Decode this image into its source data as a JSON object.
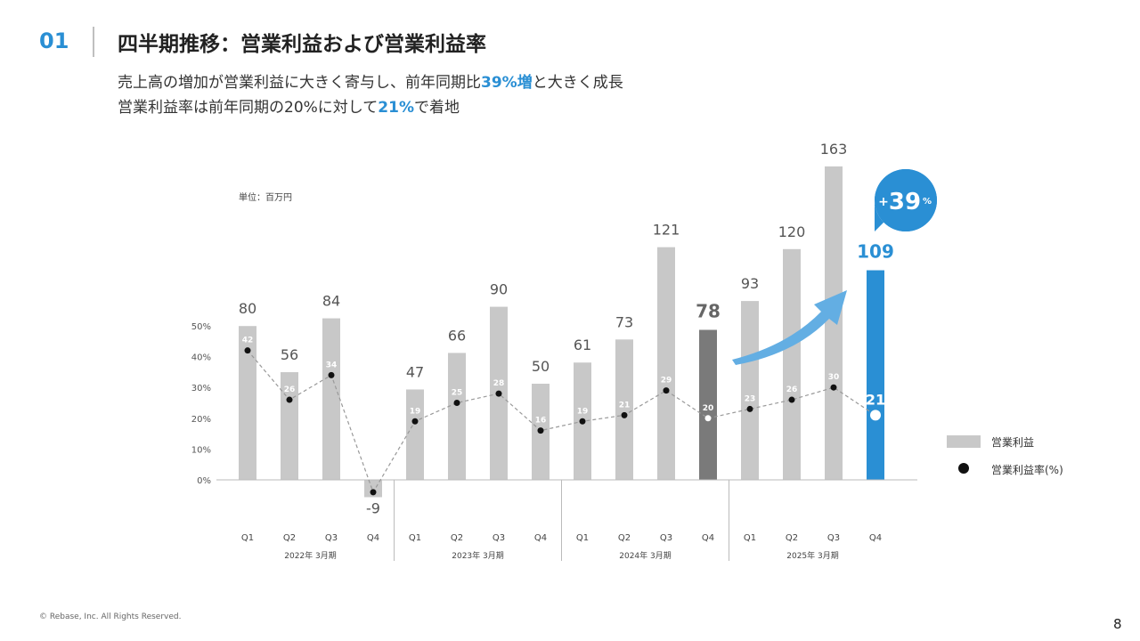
{
  "header": {
    "section_number": "01",
    "title": "四半期推移：営業利益および営業利益率",
    "subtitle1_pre": "売上高の増加が営業利益に大きく寄与し、前年同期比",
    "subtitle1_hl": "39%増",
    "subtitle1_post": "と大きく成長",
    "subtitle2_pre": "営業利益率は前年同期の20%に対して",
    "subtitle2_hl": "21%",
    "subtitle2_post": "で着地"
  },
  "unit_label": "単位：百万円",
  "legend": {
    "bar": "営業利益",
    "dot": "営業利益率(%)"
  },
  "growth_badge": {
    "sign": "+",
    "value": "39",
    "unit": "%"
  },
  "footer": {
    "copyright": "© Rebase, Inc. All Rights Reserved.",
    "page": "8"
  },
  "colors": {
    "bar": "#c8c8c8",
    "highlight_prev": "#7a7a7a",
    "highlight_curr": "#2a8fd4",
    "line": "#999999",
    "dot": "#111111"
  },
  "chart_data": {
    "type": "bar",
    "categories": [
      "Q1",
      "Q2",
      "Q3",
      "Q4",
      "Q1",
      "Q2",
      "Q3",
      "Q4",
      "Q1",
      "Q2",
      "Q3",
      "Q4",
      "Q1",
      "Q2",
      "Q3",
      "Q4"
    ],
    "groups": [
      "2022年 3月期",
      "2023年 3月期",
      "2024年 3月期",
      "2025年 3月期"
    ],
    "series": [
      {
        "name": "営業利益",
        "type": "bar",
        "values": [
          80,
          56,
          84,
          -9,
          47,
          66,
          90,
          50,
          61,
          73,
          121,
          78,
          93,
          120,
          163,
          109
        ]
      },
      {
        "name": "営業利益率(%)",
        "type": "line",
        "values": [
          42,
          26,
          34,
          -4,
          19,
          25,
          28,
          16,
          19,
          21,
          29,
          20,
          23,
          26,
          30,
          21
        ]
      }
    ],
    "secondary_axis": {
      "ticks": [
        "0%",
        "10%",
        "20%",
        "30%",
        "40%",
        "50%"
      ],
      "ylim": [
        0,
        50
      ]
    },
    "highlight_indices": {
      "previous_year_q4": 11,
      "current_q4": 15
    }
  }
}
